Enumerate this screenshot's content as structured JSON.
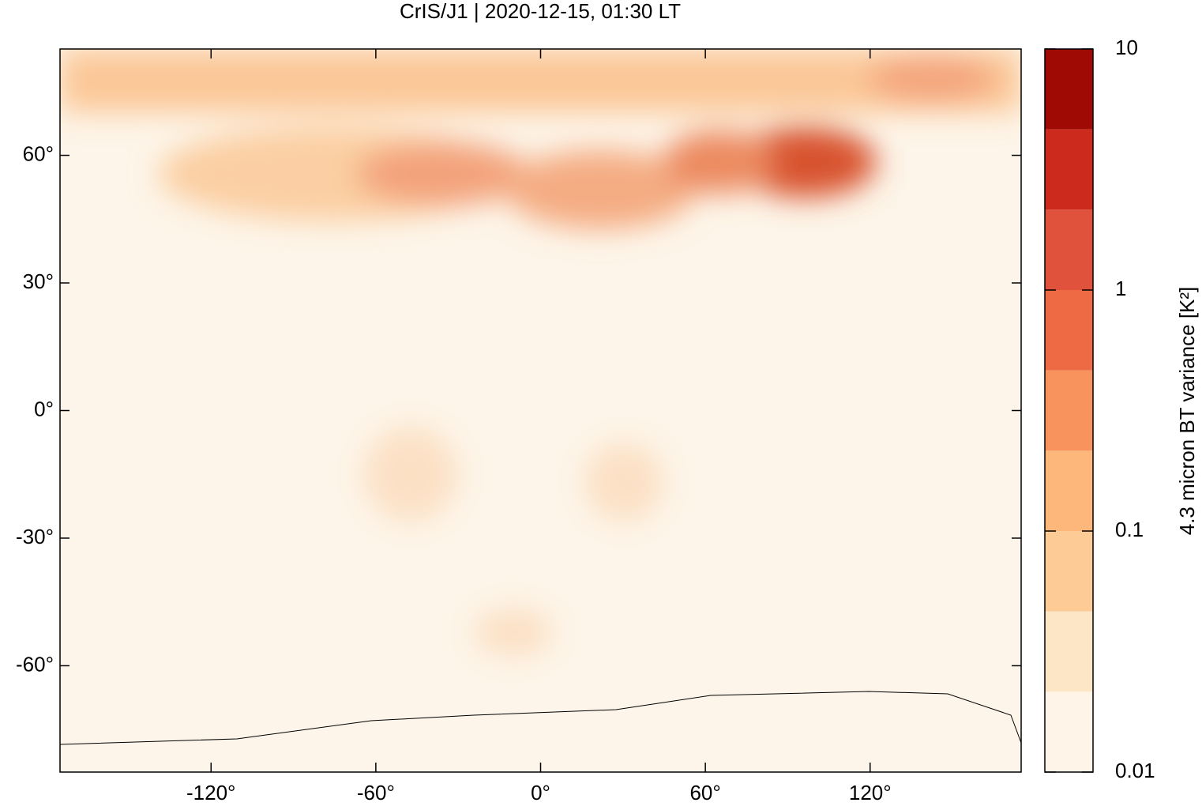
{
  "chart_data": {
    "type": "map",
    "title": "CrIS/J1 | 2020-12-15, 01:30 LT",
    "xlim": [
      -175,
      175
    ],
    "xticks": [
      {
        "value": -120,
        "label": "-120°"
      },
      {
        "value": -60,
        "label": "-60°"
      },
      {
        "value": 0,
        "label": "0°"
      },
      {
        "value": 60,
        "label": "60°"
      },
      {
        "value": 120,
        "label": "120°"
      }
    ],
    "ylim": [
      -85,
      85
    ],
    "yticks": [
      {
        "value": -60,
        "label": "-60°"
      },
      {
        "value": -30,
        "label": "-30°"
      },
      {
        "value": 0,
        "label": "0°"
      },
      {
        "value": 30,
        "label": "30°"
      },
      {
        "value": 60,
        "label": "60°"
      }
    ],
    "colorbar": {
      "label": "4.3 micron BT variance [K²]",
      "scale": "log",
      "lim": [
        0.01,
        10
      ],
      "ticks": [
        0.01,
        0.1,
        1,
        10
      ],
      "colors": [
        "#fef5e8",
        "#fde6c6",
        "#fdcb95",
        "#fdb77a",
        "#f8935e",
        "#ed6a45",
        "#e0523b",
        "#cb2a1c",
        "#a00a05"
      ]
    }
  }
}
